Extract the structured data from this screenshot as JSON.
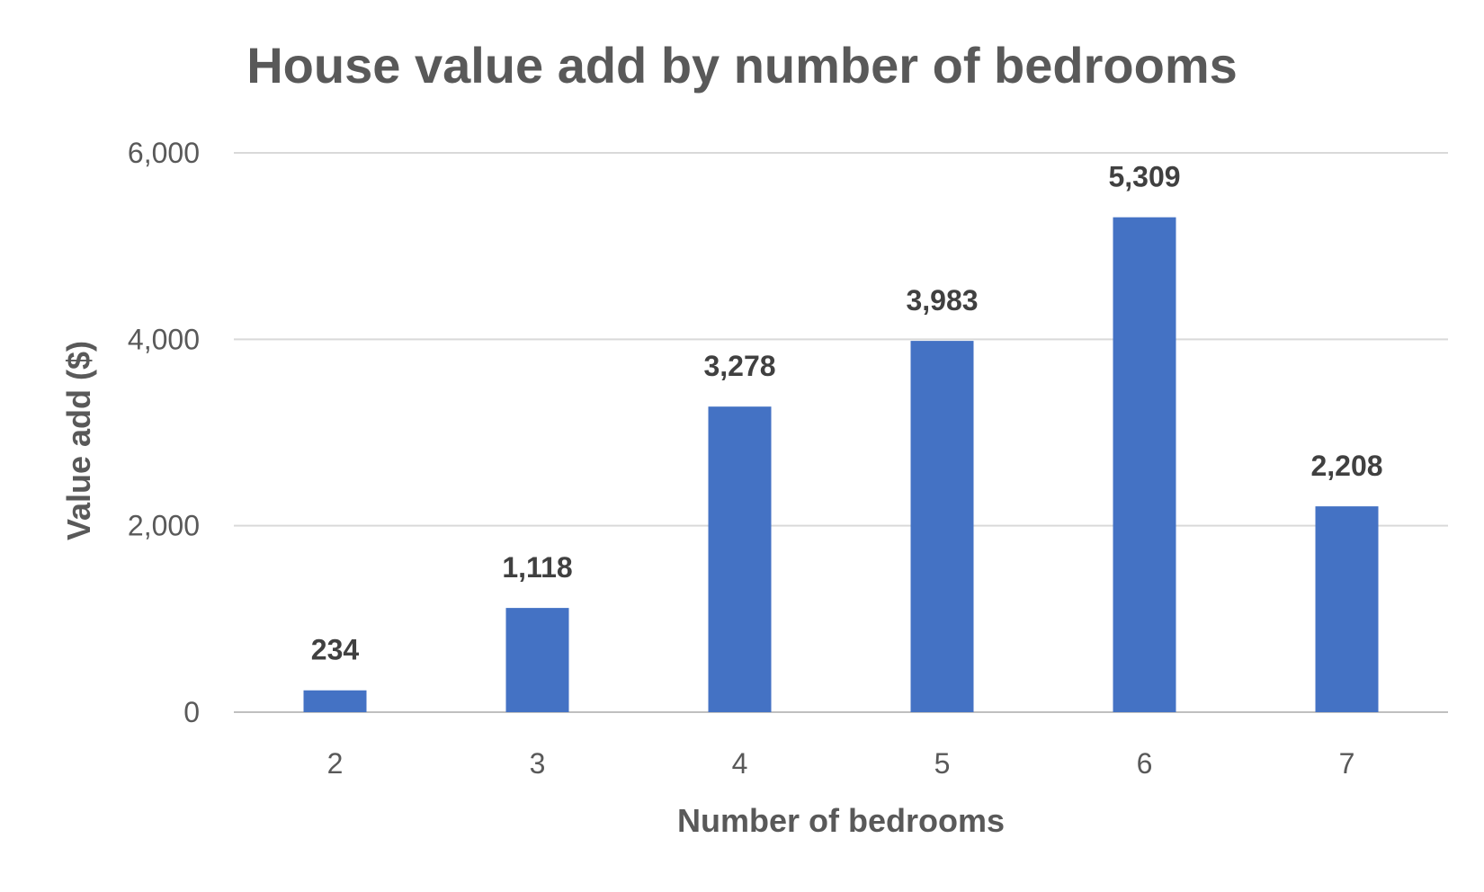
{
  "chart_data": {
    "type": "bar",
    "title": "House value add by number of bedrooms",
    "xlabel": "Number of bedrooms",
    "ylabel": "Value add ($)",
    "categories": [
      "2",
      "3",
      "4",
      "5",
      "6",
      "7"
    ],
    "values": [
      234,
      1118,
      3278,
      3983,
      5309,
      2208
    ],
    "data_labels": [
      "234",
      "1,118",
      "3,278",
      "3,983",
      "5,309",
      "2,208"
    ],
    "ylim": [
      0,
      6000
    ],
    "yticks": [
      0,
      2000,
      4000,
      6000
    ],
    "ytick_labels": [
      "0",
      "2,000",
      "4,000",
      "6,000"
    ],
    "grid": true,
    "legend": "none",
    "colors": {
      "bar": "#4472C4",
      "text": "#595959",
      "grid": "#D9D9D9"
    }
  }
}
